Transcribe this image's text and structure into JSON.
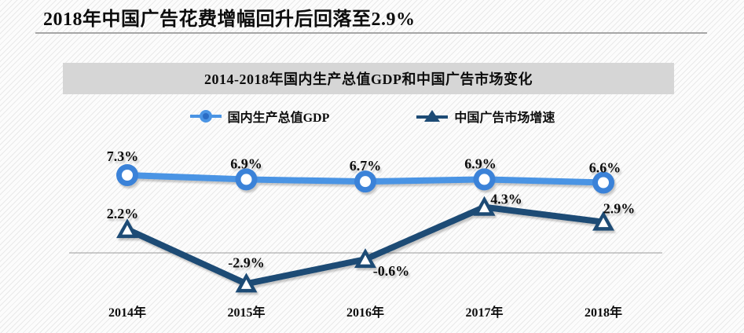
{
  "header": {
    "title": "2018年中国广告花费增幅回升后回落至2.9%"
  },
  "chart": {
    "title": "2014-2018年国内生产总值GDP和中国广告市场变化"
  },
  "chart_data": {
    "type": "line",
    "title": "2014-2018年国内生产总值GDP和中国广告市场变化",
    "categories": [
      "2014年",
      "2015年",
      "2016年",
      "2017年",
      "2018年"
    ],
    "series": [
      {
        "name": "国内生产总值GDP",
        "values": [
          7.3,
          6.9,
          6.7,
          6.9,
          6.6
        ],
        "labels": [
          "7.3%",
          "6.9%",
          "6.7%",
          "6.9%",
          "6.6%"
        ],
        "marker": "circle",
        "line_color": "#4a94e4",
        "marker_color": "#3b82d8"
      },
      {
        "name": "中国广告市场增速",
        "values": [
          2.2,
          -2.9,
          -0.6,
          4.3,
          2.9
        ],
        "labels": [
          "2.2%",
          "-2.9%",
          "-0.6%",
          "4.3%",
          "2.9%"
        ],
        "marker": "triangle",
        "line_color": "#1d4b75",
        "marker_color": "#1d4b75"
      }
    ],
    "xlabel": "",
    "ylabel": "",
    "baseline": 0,
    "grid": "zero-baseline-only",
    "legend_position": "top-center",
    "label_color": "#111111"
  }
}
